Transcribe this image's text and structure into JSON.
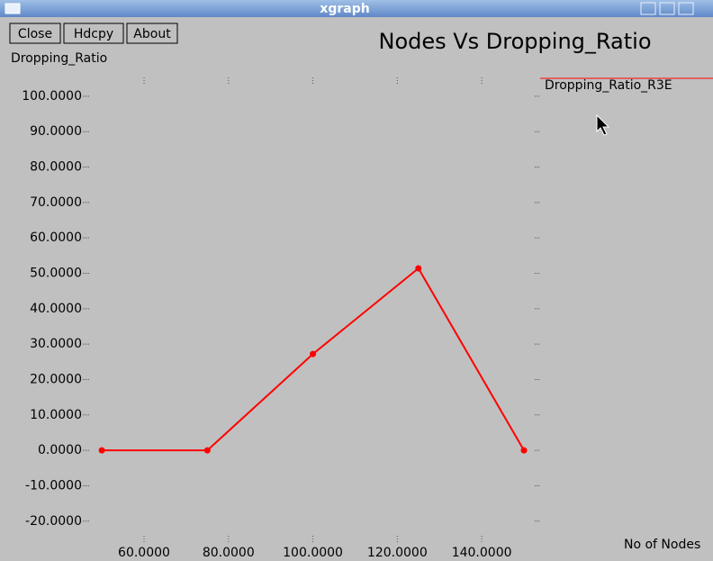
{
  "window": {
    "title": "xgraph",
    "buttons": [
      "Close",
      "Hdcpy",
      "About"
    ]
  },
  "chart_data": {
    "type": "line",
    "title": "Nodes Vs Dropping_Ratio",
    "y_label": "Dropping_Ratio",
    "x_label": "No of Nodes",
    "x": [
      50,
      75,
      100,
      125,
      150
    ],
    "series": [
      {
        "name": "Dropping_Ratio_R3E",
        "color": "#ff0000",
        "values": [
          0,
          0,
          27.2,
          51.4,
          0
        ]
      }
    ],
    "xlim": [
      47.2,
      153.2
    ],
    "xticks": [
      {
        "value": 60,
        "label": "60.0000"
      },
      {
        "value": 80,
        "label": "80.0000"
      },
      {
        "value": 100,
        "label": "100.0000"
      },
      {
        "value": 120,
        "label": "120.0000"
      },
      {
        "value": 140,
        "label": "140.0000"
      }
    ],
    "ylim": [
      -25.4,
      104.8
    ],
    "yticks": [
      {
        "value": 100,
        "label": "100.0000"
      },
      {
        "value": 90,
        "label": "90.0000"
      },
      {
        "value": 80,
        "label": "80.0000"
      },
      {
        "value": 70,
        "label": "70.0000"
      },
      {
        "value": 60,
        "label": "60.0000"
      },
      {
        "value": 50,
        "label": "50.0000"
      },
      {
        "value": 40,
        "label": "40.0000"
      },
      {
        "value": 30,
        "label": "30.0000"
      },
      {
        "value": 20,
        "label": "20.0000"
      },
      {
        "value": 10,
        "label": "10.0000"
      },
      {
        "value": 0,
        "label": "0.0000"
      },
      {
        "value": -10,
        "label": "-10.0000"
      },
      {
        "value": -20,
        "label": "-20.0000"
      }
    ],
    "legend": "top-right",
    "grid": false
  }
}
